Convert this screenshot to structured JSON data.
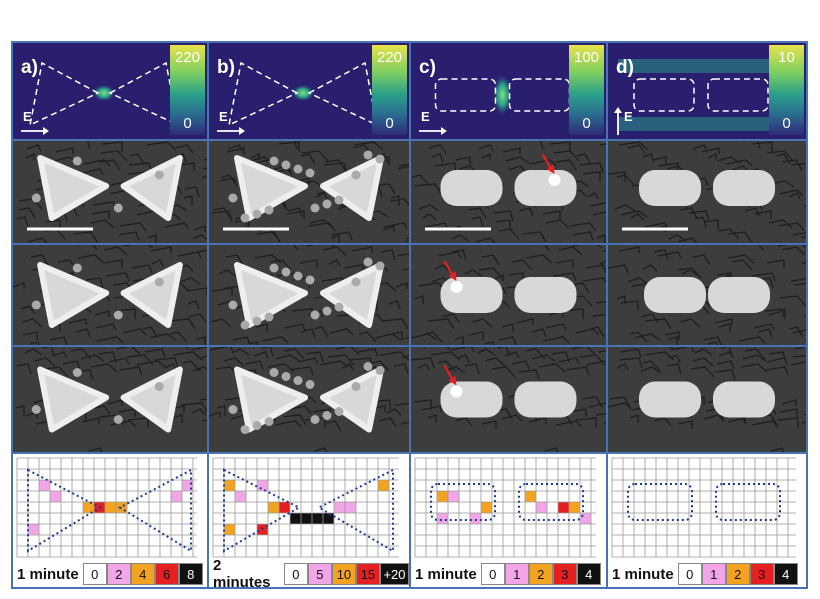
{
  "columns": [
    {
      "label": "a)",
      "cbar_max": "220",
      "cbar_min": "0",
      "e_label": "E",
      "e_dir": "right",
      "shape": "triangle",
      "time": "1 minute",
      "legend": [
        {
          "text": "0",
          "color": "#ffffff",
          "fg": "#111"
        },
        {
          "text": "2",
          "color": "#f2a6e8",
          "fg": "#111"
        },
        {
          "text": "4",
          "color": "#f4a320",
          "fg": "#111"
        },
        {
          "text": "6",
          "color": "#e52020",
          "fg": "#111"
        },
        {
          "text": "8",
          "color": "#111111",
          "fg": "#fff"
        }
      ]
    },
    {
      "label": "b)",
      "cbar_max": "220",
      "cbar_min": "0",
      "e_label": "E",
      "e_dir": "right",
      "shape": "triangle",
      "time": "2 minutes",
      "legend": [
        {
          "text": "0",
          "color": "#ffffff",
          "fg": "#111"
        },
        {
          "text": "5",
          "color": "#f2a6e8",
          "fg": "#111"
        },
        {
          "text": "10",
          "color": "#f4a320",
          "fg": "#111"
        },
        {
          "text": "15",
          "color": "#e52020",
          "fg": "#111"
        },
        {
          "text": "+20",
          "color": "#111111",
          "fg": "#fff"
        }
      ]
    },
    {
      "label": "c)",
      "cbar_max": "100",
      "cbar_min": "0",
      "e_label": "E",
      "e_dir": "right",
      "shape": "rod",
      "time": "1 minute",
      "legend": [
        {
          "text": "0",
          "color": "#ffffff",
          "fg": "#111"
        },
        {
          "text": "1",
          "color": "#f2a6e8",
          "fg": "#111"
        },
        {
          "text": "2",
          "color": "#f4a320",
          "fg": "#111"
        },
        {
          "text": "3",
          "color": "#e52020",
          "fg": "#111"
        },
        {
          "text": "4",
          "color": "#111111",
          "fg": "#fff"
        }
      ]
    },
    {
      "label": "d)",
      "cbar_max": "10",
      "cbar_min": "0",
      "e_label": "E",
      "e_dir": "up",
      "shape": "rod",
      "time": "1 minute",
      "legend": [
        {
          "text": "0",
          "color": "#ffffff",
          "fg": "#111"
        },
        {
          "text": "1",
          "color": "#f2a6e8",
          "fg": "#111"
        },
        {
          "text": "2",
          "color": "#f4a320",
          "fg": "#111"
        },
        {
          "text": "3",
          "color": "#e52020",
          "fg": "#111"
        },
        {
          "text": "4",
          "color": "#111111",
          "fg": "#fff"
        }
      ]
    }
  ],
  "colors": {
    "frame": "#4a73b5",
    "field_bg": "#2a1e6e",
    "sem_bg": "#3d3d3d",
    "particle": "#d8d8d8",
    "arrow": "#e52020"
  }
}
